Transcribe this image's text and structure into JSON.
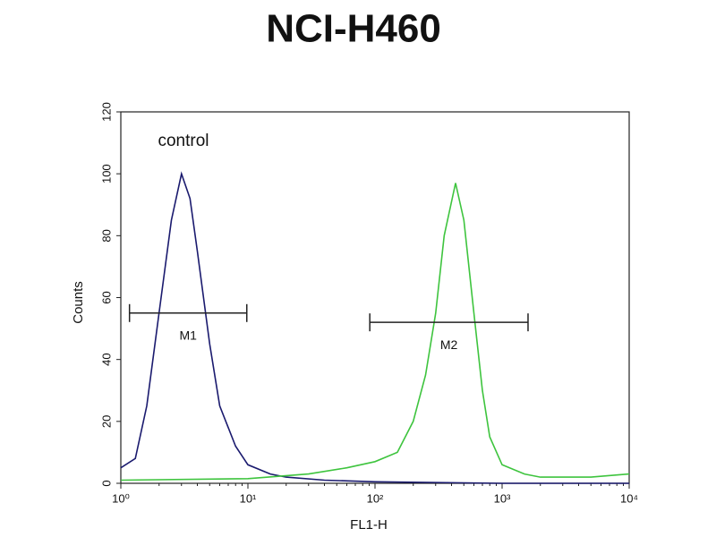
{
  "chart_data": {
    "type": "line",
    "title": "NCI-H460",
    "x_label": "FL1-H",
    "y_label": "Counts",
    "xscale": "log",
    "xlim": [
      1,
      10000
    ],
    "xticks": [
      {
        "value": 1,
        "label": "10⁰"
      },
      {
        "value": 10,
        "label": "10¹"
      },
      {
        "value": 100,
        "label": "10²"
      },
      {
        "value": 1000,
        "label": "10³"
      },
      {
        "value": 10000,
        "label": "10⁴"
      }
    ],
    "ylim": [
      0,
      120
    ],
    "yticks": [
      0,
      20,
      40,
      60,
      80,
      100,
      120
    ],
    "series": [
      {
        "name": "control",
        "color": "#1a1a6e",
        "x": [
          1,
          1.3,
          1.6,
          2,
          2.5,
          3,
          3.5,
          4,
          5,
          6,
          8,
          10,
          15,
          20,
          40,
          100,
          1000,
          10000
        ],
        "values": [
          5,
          8,
          25,
          55,
          85,
          100,
          92,
          75,
          45,
          25,
          12,
          6,
          3,
          2,
          1,
          0.5,
          0,
          0
        ]
      },
      {
        "color": "#3ec43e",
        "x": [
          1,
          10,
          30,
          60,
          100,
          150,
          200,
          250,
          300,
          350,
          430,
          500,
          600,
          700,
          800,
          1000,
          1500,
          2000,
          5000,
          10000
        ],
        "values": [
          1,
          1.5,
          3,
          5,
          7,
          10,
          20,
          35,
          55,
          80,
          97,
          85,
          55,
          30,
          15,
          6,
          3,
          2,
          2,
          3
        ]
      }
    ],
    "markers": [
      {
        "label": "M1",
        "range": [
          1.17,
          9.8
        ],
        "y": 55
      },
      {
        "label": "M2",
        "range": [
          91,
          1600
        ],
        "y": 52
      }
    ]
  }
}
